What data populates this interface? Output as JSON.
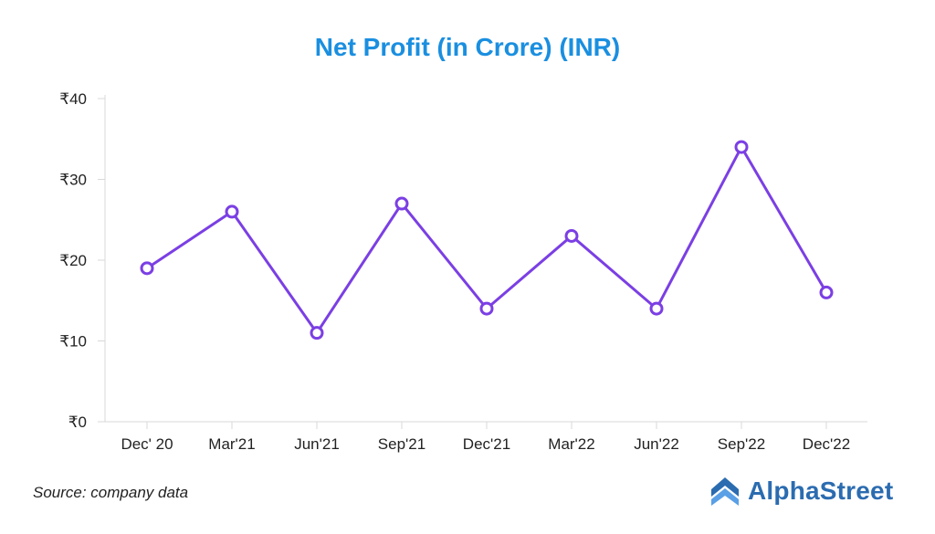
{
  "chart_data": {
    "type": "line",
    "title": "Net Profit (in Crore) (INR)",
    "categories": [
      "Dec' 20",
      "Mar'21",
      "Jun'21",
      "Sep'21",
      "Dec'21",
      "Mar'22",
      "Jun'22",
      "Sep'22",
      "Dec'22"
    ],
    "series": [
      {
        "values": [
          19,
          26,
          11,
          27,
          14,
          23,
          14,
          34,
          16
        ]
      }
    ],
    "ylim": [
      0,
      40
    ],
    "yticks": [
      0,
      10,
      20,
      30,
      40
    ],
    "ytick_labels": [
      "₹0",
      "₹10",
      "₹20",
      "₹30",
      "₹40"
    ],
    "grid": false,
    "line_color": "#7b3fe4"
  },
  "footer": {
    "source": "Source: company data",
    "brand": "AlphaStreet",
    "brand_icon": "alphastreet-logo-icon"
  },
  "colors": {
    "title": "#1a8fe0",
    "brand": "#2b6cb0"
  }
}
